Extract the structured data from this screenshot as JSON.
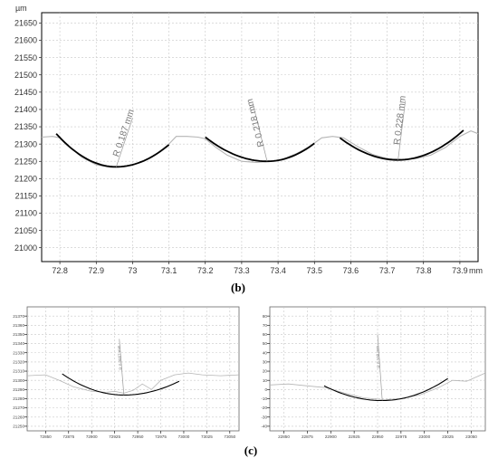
{
  "captions": {
    "b": "(b)",
    "c": "(c)"
  },
  "chart_data": [
    {
      "type": "line",
      "panel": "b",
      "y_unit": "µm",
      "x_unit": "mm",
      "xlim": [
        72.75,
        73.95
      ],
      "ylim": [
        20960,
        21680
      ],
      "x_ticks": [
        72.8,
        72.9,
        73,
        73.1,
        73.2,
        73.3,
        73.4,
        73.5,
        73.6,
        73.7,
        73.8,
        73.9
      ],
      "x_tick_labels": [
        "72.8",
        "72.9",
        "73",
        "73.1",
        "73.2",
        "73.3",
        "73.4",
        "73.5",
        "73.6",
        "73.7",
        "73.8",
        "73.9"
      ],
      "y_ticks": [
        21000,
        21050,
        21100,
        21150,
        21200,
        21250,
        21300,
        21350,
        21400,
        21450,
        21500,
        21550,
        21600,
        21650
      ],
      "y_tick_labels": [
        "21000",
        "21050",
        "21100",
        "21150",
        "21200",
        "21250",
        "21300",
        "21350",
        "21400",
        "21450",
        "21500",
        "21550",
        "21600",
        "21650"
      ],
      "grid": true,
      "profile": {
        "x": [
          72.75,
          72.78,
          72.8,
          72.83,
          72.86,
          72.9,
          72.94,
          72.97,
          73.0,
          73.04,
          73.07,
          73.1,
          73.12,
          73.15,
          73.18,
          73.2,
          73.23,
          73.26,
          73.3,
          73.34,
          73.37,
          73.41,
          73.45,
          73.49,
          73.52,
          73.55,
          73.58,
          73.62,
          73.66,
          73.7,
          73.74,
          73.78,
          73.82,
          73.86,
          73.9,
          73.93,
          73.95
        ],
        "y": [
          21320,
          21322,
          21318,
          21290,
          21262,
          21240,
          21232,
          21235,
          21240,
          21255,
          21275,
          21300,
          21322,
          21322,
          21320,
          21315,
          21290,
          21268,
          21250,
          21247,
          21249,
          21255,
          21272,
          21295,
          21318,
          21322,
          21318,
          21292,
          21270,
          21258,
          21256,
          21258,
          21268,
          21290,
          21322,
          21338,
          21330
        ]
      },
      "arcs": [
        {
          "x_start": 72.79,
          "x_end": 73.1,
          "y_ends": [
            21330,
            21298
          ],
          "y_bottom": 21234,
          "x_bottom": 72.955,
          "label": "R 0.187 mm",
          "leader_to": [
            73.0,
            21375
          ]
        },
        {
          "x_start": 73.2,
          "x_end": 73.5,
          "y_ends": [
            21320,
            21302
          ],
          "y_bottom": 21250,
          "x_bottom": 73.37,
          "label": "R 0.218 mm",
          "leader_to": [
            73.33,
            21420
          ]
        },
        {
          "x_start": 73.57,
          "x_end": 73.91,
          "y_ends": [
            21318,
            21340
          ],
          "y_bottom": 21254,
          "x_bottom": 73.73,
          "label": "R 0.228 mm",
          "leader_to": [
            73.75,
            21425
          ]
        }
      ]
    },
    {
      "type": "line",
      "panel": "c-left",
      "xlim": [
        72830,
        73060
      ],
      "ylim": [
        21245,
        21380
      ],
      "x_ticks": [
        72850,
        72875,
        72900,
        72925,
        72950,
        72975,
        73000,
        73025,
        73050
      ],
      "x_tick_labels": [
        "72850",
        "72875",
        "72900",
        "72925",
        "72950",
        "72975",
        "73000",
        "73025",
        "73050"
      ],
      "y_ticks": [
        21250,
        21260,
        21270,
        21280,
        21290,
        21300,
        21310,
        21320,
        21330,
        21340,
        21350,
        21360,
        21370
      ],
      "y_tick_labels": [
        "21250",
        "21260",
        "21270",
        "21280",
        "21290",
        "21300",
        "21310",
        "21320",
        "21330",
        "21340",
        "21350",
        "21360",
        "21370"
      ],
      "grid": true,
      "profile": {
        "x": [
          72830,
          72850,
          72865,
          72880,
          72900,
          72915,
          72925,
          72935,
          72945,
          72955,
          72965,
          72975,
          72990,
          73005,
          73020,
          73040,
          73060
        ],
        "y": [
          21305,
          21306,
          21300,
          21293,
          21288,
          21287,
          21288,
          21286,
          21289,
          21296,
          21290,
          21300,
          21306,
          21308,
          21306,
          21305,
          21306
        ]
      },
      "arc": {
        "x_start": 72868,
        "x_end": 72995,
        "y_ends": [
          21307,
          21299
        ],
        "y_bottom": 21284,
        "x_bottom": 72935,
        "label": "R 0.0867 mm",
        "leader_to": [
          72930,
          21345
        ]
      }
    },
    {
      "type": "line",
      "panel": "c-right",
      "xlim": [
        22835,
        23065
      ],
      "ylim": [
        -45,
        90
      ],
      "x_ticks": [
        22850,
        22875,
        22900,
        22925,
        22950,
        22975,
        23000,
        23025,
        23050
      ],
      "x_tick_labels": [
        "22850",
        "22875",
        "22900",
        "22925",
        "22950",
        "22975",
        "23000",
        "23025",
        "23050"
      ],
      "y_ticks": [
        -40,
        -30,
        -20,
        -10,
        0,
        10,
        20,
        30,
        40,
        50,
        60,
        70,
        80
      ],
      "y_tick_labels": [
        "-40",
        "-30",
        "-20",
        "-10",
        "0",
        "10",
        "20",
        "30",
        "40",
        "50",
        "60",
        "70",
        "80"
      ],
      "grid": true,
      "profile": {
        "x": [
          22835,
          22855,
          22875,
          22895,
          22915,
          22935,
          22955,
          22975,
          22995,
          23015,
          23030,
          23045,
          23065
        ],
        "y": [
          5,
          6,
          4,
          2,
          -4,
          -9,
          -11,
          -10,
          -6,
          2,
          10,
          9,
          18
        ]
      },
      "arc": {
        "x_start": 22893,
        "x_end": 23025,
        "y_ends": [
          4,
          12
        ],
        "y_bottom": -12,
        "x_bottom": 22955,
        "label": "R 0.100 mm",
        "leader_to": [
          22950,
          60
        ]
      }
    }
  ]
}
